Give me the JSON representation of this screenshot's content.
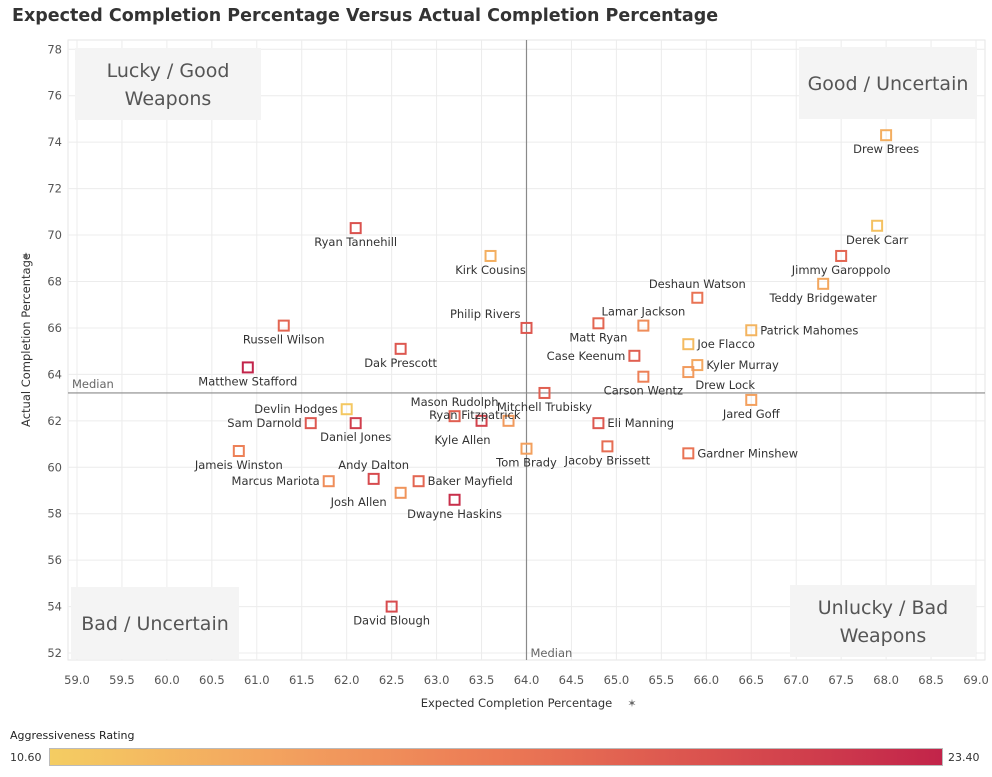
{
  "title": "Expected Completion Percentage Versus Actual Completion Percentage",
  "chart_data": {
    "type": "scatter",
    "xlabel": "Expected Completion Percentage",
    "ylabel": "Actual Completion Percentage",
    "xlim": [
      58.9,
      69.1
    ],
    "ylim": [
      51.7,
      78.4
    ],
    "xticks": [
      "59.0",
      "59.5",
      "60.0",
      "60.5",
      "61.0",
      "61.5",
      "62.0",
      "62.5",
      "63.0",
      "63.5",
      "64.0",
      "64.5",
      "65.0",
      "65.5",
      "66.0",
      "66.5",
      "67.0",
      "67.5",
      "68.0",
      "68.5",
      "69.0"
    ],
    "yticks": [
      "52",
      "54",
      "56",
      "58",
      "60",
      "62",
      "64",
      "66",
      "68",
      "70",
      "72",
      "74",
      "76",
      "78"
    ],
    "grid": true,
    "median_x": 64.0,
    "median_y": 63.2,
    "median_label": "Median",
    "quadrant_labels": {
      "top_left": [
        "Lucky / Good",
        "Weapons"
      ],
      "top_right": [
        "Good / Uncertain"
      ],
      "bottom_left": [
        "Bad / Uncertain"
      ],
      "bottom_right": [
        "Unlucky / Bad",
        "Weapons"
      ]
    },
    "color_legend": {
      "title": "Aggressiveness Rating",
      "min": "10.60",
      "max": "23.40",
      "min_color": "#f4cd62",
      "max_color": "#c2244a"
    },
    "points": [
      {
        "name": "Drew Brees",
        "x": 68.0,
        "y": 74.3,
        "rating": 13.0
      },
      {
        "name": "Derek Carr",
        "x": 67.9,
        "y": 70.4,
        "rating": 11.5
      },
      {
        "name": "Jimmy Garoppolo",
        "x": 67.5,
        "y": 69.1,
        "rating": 18.5
      },
      {
        "name": "Teddy Bridgewater",
        "x": 67.3,
        "y": 67.9,
        "rating": 13.5
      },
      {
        "name": "Deshaun Watson",
        "x": 65.9,
        "y": 67.3,
        "rating": 17.5
      },
      {
        "name": "Lamar Jackson",
        "x": 65.3,
        "y": 66.1,
        "rating": 15.5
      },
      {
        "name": "Matt Ryan",
        "x": 64.8,
        "y": 66.2,
        "rating": 18.5
      },
      {
        "name": "Philip Rivers",
        "x": 64.0,
        "y": 66.0,
        "rating": 19.5
      },
      {
        "name": "Patrick Mahomes",
        "x": 66.5,
        "y": 65.9,
        "rating": 12.5
      },
      {
        "name": "Joe Flacco",
        "x": 65.8,
        "y": 65.3,
        "rating": 12.0
      },
      {
        "name": "Case Keenum",
        "x": 65.2,
        "y": 64.8,
        "rating": 19.0
      },
      {
        "name": "Kyler Murray",
        "x": 65.9,
        "y": 64.4,
        "rating": 13.5
      },
      {
        "name": "Drew Lock",
        "x": 65.8,
        "y": 64.1,
        "rating": 14.5
      },
      {
        "name": "Carson Wentz",
        "x": 65.3,
        "y": 63.9,
        "rating": 16.5
      },
      {
        "name": "Kirk Cousins",
        "x": 63.6,
        "y": 69.1,
        "rating": 13.0
      },
      {
        "name": "Ryan Tannehill",
        "x": 62.1,
        "y": 70.3,
        "rating": 20.0
      },
      {
        "name": "Russell Wilson",
        "x": 61.3,
        "y": 66.1,
        "rating": 18.5
      },
      {
        "name": "Dak Prescott",
        "x": 62.6,
        "y": 65.1,
        "rating": 19.5
      },
      {
        "name": "Matthew Stafford",
        "x": 60.9,
        "y": 64.3,
        "rating": 23.4
      },
      {
        "name": "Mitchell Trubisky",
        "x": 64.2,
        "y": 63.2,
        "rating": 19.0
      },
      {
        "name": "Jared Goff",
        "x": 66.5,
        "y": 62.9,
        "rating": 14.0
      },
      {
        "name": "Devlin Hodges",
        "x": 62.0,
        "y": 62.5,
        "rating": 11.0
      },
      {
        "name": "Mason Rudolph",
        "x": 63.2,
        "y": 62.2,
        "rating": 19.0
      },
      {
        "name": "Kyle Allen",
        "x": 63.5,
        "y": 62.0,
        "rating": 21.0
      },
      {
        "name": "Ryan Fitzpatrick",
        "x": 63.8,
        "y": 62.0,
        "rating": 14.5
      },
      {
        "name": "Sam Darnold",
        "x": 61.6,
        "y": 61.9,
        "rating": 19.5
      },
      {
        "name": "Daniel Jones",
        "x": 62.1,
        "y": 61.9,
        "rating": 21.5
      },
      {
        "name": "Eli Manning",
        "x": 64.8,
        "y": 61.9,
        "rating": 19.5
      },
      {
        "name": "Tom Brady",
        "x": 64.0,
        "y": 60.8,
        "rating": 14.0
      },
      {
        "name": "Jacoby Brissett",
        "x": 64.9,
        "y": 60.9,
        "rating": 18.0
      },
      {
        "name": "Jameis Winston",
        "x": 60.8,
        "y": 60.7,
        "rating": 16.5
      },
      {
        "name": "Gardner Minshew",
        "x": 65.8,
        "y": 60.6,
        "rating": 17.5
      },
      {
        "name": "Marcus Mariota",
        "x": 61.8,
        "y": 59.4,
        "rating": 15.5
      },
      {
        "name": "Andy Dalton",
        "x": 62.3,
        "y": 59.5,
        "rating": 20.5
      },
      {
        "name": "Baker Mayfield",
        "x": 62.8,
        "y": 59.4,
        "rating": 18.5
      },
      {
        "name": "Josh Allen",
        "x": 62.6,
        "y": 58.9,
        "rating": 15.0
      },
      {
        "name": "Dwayne Haskins",
        "x": 63.2,
        "y": 58.6,
        "rating": 22.5
      },
      {
        "name": "David Blough",
        "x": 62.5,
        "y": 54.0,
        "rating": 20.5
      }
    ]
  }
}
